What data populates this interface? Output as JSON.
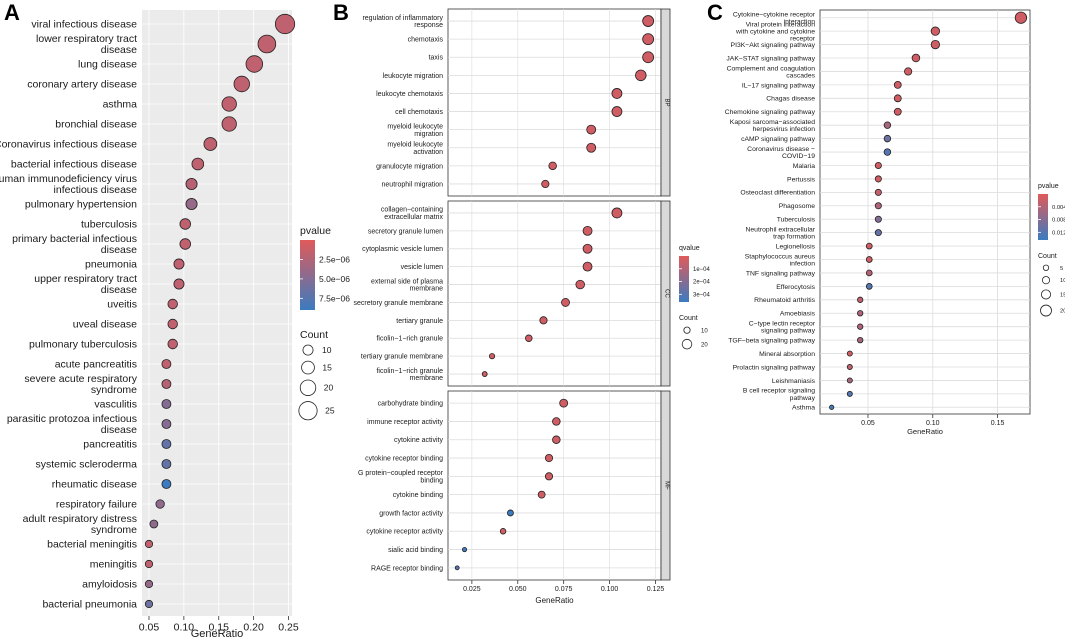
{
  "panels": [
    "A",
    "B",
    "C"
  ],
  "chart_data": [
    {
      "id": "A",
      "type": "scatter",
      "xlabel": "GeneRatio",
      "ylabel": "",
      "xlim": [
        0.04,
        0.255
      ],
      "xticks": [
        "0.05",
        "0.10",
        "0.15",
        "0.20",
        "0.25"
      ],
      "xtick_values": [
        0.05,
        0.1,
        0.15,
        0.2,
        0.25
      ],
      "color_legend": {
        "title": "pvalue",
        "labels": [
          "2.5e−06",
          "5.0e−06",
          "7.5e−06"
        ],
        "high": "#e05a5a",
        "low": "#3b7bc0"
      },
      "size_legend": {
        "title": "Count",
        "labels": [
          "10",
          "15",
          "20",
          "25"
        ],
        "values": [
          10,
          15,
          20,
          25
        ]
      },
      "terms": [
        {
          "label": "viral infectious disease",
          "x": 0.245,
          "count": 27,
          "pvalue": 0.2
        },
        {
          "label": "lower respiratory tract disease",
          "x": 0.219,
          "count": 24,
          "pvalue": 0.2
        },
        {
          "label": "lung disease",
          "x": 0.201,
          "count": 22,
          "pvalue": 0.2
        },
        {
          "label": "coronary artery disease",
          "x": 0.183,
          "count": 20,
          "pvalue": 0.2
        },
        {
          "label": "asthma",
          "x": 0.165,
          "count": 18,
          "pvalue": 0.2
        },
        {
          "label": "bronchial disease",
          "x": 0.165,
          "count": 18,
          "pvalue": 0.2
        },
        {
          "label": "Coronavirus infectious disease",
          "x": 0.138,
          "count": 15,
          "pvalue": 0.2
        },
        {
          "label": "bacterial infectious disease",
          "x": 0.12,
          "count": 13,
          "pvalue": 0.2
        },
        {
          "label": "human immunodeficiency virus infectious disease",
          "x": 0.111,
          "count": 12,
          "pvalue": 0.25
        },
        {
          "label": "pulmonary hypertension",
          "x": 0.111,
          "count": 12,
          "pvalue": 0.45
        },
        {
          "label": "tuberculosis",
          "x": 0.102,
          "count": 11,
          "pvalue": 0.2
        },
        {
          "label": "primary bacterial infectious disease",
          "x": 0.102,
          "count": 11,
          "pvalue": 0.2
        },
        {
          "label": "pneumonia",
          "x": 0.093,
          "count": 10,
          "pvalue": 0.2
        },
        {
          "label": "upper respiratory tract disease",
          "x": 0.093,
          "count": 10,
          "pvalue": 0.2
        },
        {
          "label": "uveitis",
          "x": 0.084,
          "count": 9,
          "pvalue": 0.2
        },
        {
          "label": "uveal disease",
          "x": 0.084,
          "count": 9,
          "pvalue": 0.2
        },
        {
          "label": "pulmonary tuberculosis",
          "x": 0.084,
          "count": 9,
          "pvalue": 0.2
        },
        {
          "label": "acute pancreatitis",
          "x": 0.075,
          "count": 8,
          "pvalue": 0.2
        },
        {
          "label": "severe acute respiratory syndrome",
          "x": 0.075,
          "count": 8,
          "pvalue": 0.25
        },
        {
          "label": "vasculitis",
          "x": 0.075,
          "count": 8,
          "pvalue": 0.55
        },
        {
          "label": "parasitic protozoa infectious disease",
          "x": 0.075,
          "count": 8,
          "pvalue": 0.55
        },
        {
          "label": "pancreatitis",
          "x": 0.075,
          "count": 8,
          "pvalue": 0.75
        },
        {
          "label": "systemic scleroderma",
          "x": 0.075,
          "count": 8,
          "pvalue": 0.75
        },
        {
          "label": "rheumatic disease",
          "x": 0.075,
          "count": 8,
          "pvalue": 1.0
        },
        {
          "label": "respiratory failure",
          "x": 0.066,
          "count": 7,
          "pvalue": 0.5
        },
        {
          "label": "adult respiratory distress syndrome",
          "x": 0.057,
          "count": 6,
          "pvalue": 0.5
        },
        {
          "label": "bacterial meningitis",
          "x": 0.05,
          "count": 5,
          "pvalue": 0.2
        },
        {
          "label": "meningitis",
          "x": 0.05,
          "count": 5,
          "pvalue": 0.2
        },
        {
          "label": "amyloidosis",
          "x": 0.05,
          "count": 5,
          "pvalue": 0.45
        },
        {
          "label": "bacterial pneumonia",
          "x": 0.05,
          "count": 5,
          "pvalue": 0.7
        }
      ]
    },
    {
      "id": "B",
      "type": "scatter",
      "xlabel": "GeneRatio",
      "ylabel": "",
      "xlim": [
        0.012,
        0.128
      ],
      "xticks": [
        "0.025",
        "0.050",
        "0.075",
        "0.100",
        "0.125"
      ],
      "xtick_values": [
        0.025,
        0.05,
        0.075,
        0.1,
        0.125
      ],
      "color_legend": {
        "title": "qvalue",
        "labels": [
          "1e−04",
          "2e−04",
          "3e−04"
        ],
        "high": "#e05a5a",
        "low": "#3b7bc0"
      },
      "size_legend": {
        "title": "Count",
        "labels": [
          "10",
          "20"
        ],
        "values": [
          10,
          20
        ]
      },
      "facets": [
        {
          "strip": "BP",
          "terms": [
            {
              "label": "regulation of inflammatory response",
              "x": 0.121,
              "count": 24,
              "q": 0.1
            },
            {
              "label": "chemotaxis",
              "x": 0.121,
              "count": 24,
              "q": 0.1
            },
            {
              "label": "taxis",
              "x": 0.121,
              "count": 24,
              "q": 0.1
            },
            {
              "label": "leukocyte migration",
              "x": 0.117,
              "count": 23,
              "q": 0.1
            },
            {
              "label": "leukocyte chemotaxis",
              "x": 0.104,
              "count": 21,
              "q": 0.1
            },
            {
              "label": "cell chemotaxis",
              "x": 0.104,
              "count": 21,
              "q": 0.1
            },
            {
              "label": "myeloid leukocyte migration",
              "x": 0.09,
              "count": 18,
              "q": 0.1
            },
            {
              "label": "myeloid leukocyte activation",
              "x": 0.09,
              "count": 18,
              "q": 0.1
            },
            {
              "label": "granulocyte migration",
              "x": 0.069,
              "count": 14,
              "q": 0.1
            },
            {
              "label": "neutrophil migration",
              "x": 0.065,
              "count": 13,
              "q": 0.1
            }
          ]
        },
        {
          "strip": "CC",
          "terms": [
            {
              "label": "collagen−containing extracellular matrix",
              "x": 0.104,
              "count": 21,
              "q": 0.1
            },
            {
              "label": "secretory granule lumen",
              "x": 0.088,
              "count": 18,
              "q": 0.1
            },
            {
              "label": "cytoplasmic vesicle lumen",
              "x": 0.088,
              "count": 18,
              "q": 0.1
            },
            {
              "label": "vesicle lumen",
              "x": 0.088,
              "count": 18,
              "q": 0.1
            },
            {
              "label": "external side of plasma membrane",
              "x": 0.084,
              "count": 17,
              "q": 0.1
            },
            {
              "label": "secretory granule membrane",
              "x": 0.076,
              "count": 15,
              "q": 0.1
            },
            {
              "label": "tertiary granule",
              "x": 0.064,
              "count": 13,
              "q": 0.1
            },
            {
              "label": "ficolin−1−rich granule",
              "x": 0.056,
              "count": 11,
              "q": 0.1
            },
            {
              "label": "tertiary granule membrane",
              "x": 0.036,
              "count": 7,
              "q": 0.1
            },
            {
              "label": "ficolin−1−rich granule membrane",
              "x": 0.032,
              "count": 6,
              "q": 0.1
            }
          ]
        },
        {
          "strip": "MF",
          "terms": [
            {
              "label": "carbohydrate binding",
              "x": 0.075,
              "count": 15,
              "q": 0.1
            },
            {
              "label": "immune receptor activity",
              "x": 0.071,
              "count": 14,
              "q": 0.1
            },
            {
              "label": "cytokine activity",
              "x": 0.071,
              "count": 14,
              "q": 0.1
            },
            {
              "label": "cytokine receptor binding",
              "x": 0.067,
              "count": 13,
              "q": 0.1
            },
            {
              "label": "G protein−coupled receptor binding",
              "x": 0.067,
              "count": 13,
              "q": 0.1
            },
            {
              "label": "cytokine binding",
              "x": 0.063,
              "count": 12,
              "q": 0.1
            },
            {
              "label": "growth factor activity",
              "x": 0.046,
              "count": 9,
              "q": 1.0
            },
            {
              "label": "cytokine receptor activity",
              "x": 0.042,
              "count": 8,
              "q": 0.1
            },
            {
              "label": "sialic acid binding",
              "x": 0.021,
              "count": 4,
              "q": 1.0
            },
            {
              "label": "RAGE receptor binding",
              "x": 0.017,
              "count": 3,
              "q": 0.85
            }
          ]
        }
      ]
    },
    {
      "id": "C",
      "type": "scatter",
      "xlabel": "GeneRatio",
      "ylabel": "",
      "xlim": [
        0.013,
        0.175
      ],
      "xticks": [
        "0.05",
        "0.10",
        "0.15"
      ],
      "xtick_values": [
        0.05,
        0.1,
        0.15
      ],
      "color_legend": {
        "title": "pvalue",
        "labels": [
          "0.004",
          "0.008",
          "0.012"
        ],
        "high": "#e05a5a",
        "low": "#3b7bc0"
      },
      "size_legend": {
        "title": "Count",
        "labels": [
          "5",
          "10",
          "15",
          "20"
        ],
        "values": [
          5,
          10,
          15,
          20
        ]
      },
      "terms": [
        {
          "label": "Cytokine−cytokine receptor interaction",
          "x": 0.168,
          "count": 21,
          "pvalue": 0.1
        },
        {
          "label": "Viral protein interaction with cytokine and cytokine receptor",
          "x": 0.102,
          "count": 13,
          "pvalue": 0.1
        },
        {
          "label": "PI3K−Akt signaling pathway",
          "x": 0.102,
          "count": 13,
          "pvalue": 0.1
        },
        {
          "label": "JAK−STAT signaling pathway",
          "x": 0.087,
          "count": 11,
          "pvalue": 0.1
        },
        {
          "label": "Complement and coagulation cascades",
          "x": 0.081,
          "count": 10,
          "pvalue": 0.1
        },
        {
          "label": "IL−17 signaling pathway",
          "x": 0.073,
          "count": 9,
          "pvalue": 0.1
        },
        {
          "label": "Chagas disease",
          "x": 0.073,
          "count": 9,
          "pvalue": 0.1
        },
        {
          "label": "Chemokine signaling pathway",
          "x": 0.073,
          "count": 9,
          "pvalue": 0.1
        },
        {
          "label": "Kaposi sarcoma−associated herpesvirus infection",
          "x": 0.065,
          "count": 8,
          "pvalue": 0.35
        },
        {
          "label": "cAMP signaling pathway",
          "x": 0.065,
          "count": 8,
          "pvalue": 0.7
        },
        {
          "label": "Coronavirus disease − COVID−19",
          "x": 0.065,
          "count": 8,
          "pvalue": 0.85
        },
        {
          "label": "Malaria",
          "x": 0.058,
          "count": 7,
          "pvalue": 0.1
        },
        {
          "label": "Pertussis",
          "x": 0.058,
          "count": 7,
          "pvalue": 0.1
        },
        {
          "label": "Osteoclast differentiation",
          "x": 0.058,
          "count": 7,
          "pvalue": 0.15
        },
        {
          "label": "Phagosome",
          "x": 0.058,
          "count": 7,
          "pvalue": 0.3
        },
        {
          "label": "Tuberculosis",
          "x": 0.058,
          "count": 7,
          "pvalue": 0.55
        },
        {
          "label": "Neutrophil extracellular trap formation",
          "x": 0.058,
          "count": 7,
          "pvalue": 0.75
        },
        {
          "label": "Legionellosis",
          "x": 0.051,
          "count": 6,
          "pvalue": 0.1
        },
        {
          "label": "Staphylococcus aureus infection",
          "x": 0.051,
          "count": 6,
          "pvalue": 0.1
        },
        {
          "label": "TNF signaling pathway",
          "x": 0.051,
          "count": 6,
          "pvalue": 0.25
        },
        {
          "label": "Efferocytosis",
          "x": 0.051,
          "count": 6,
          "pvalue": 0.85
        },
        {
          "label": "Rheumatoid arthritis",
          "x": 0.044,
          "count": 5,
          "pvalue": 0.2
        },
        {
          "label": "Amoebiasis",
          "x": 0.044,
          "count": 5,
          "pvalue": 0.3
        },
        {
          "label": "C−type lectin receptor signaling pathway",
          "x": 0.044,
          "count": 5,
          "pvalue": 0.3
        },
        {
          "label": "TGF−beta signaling pathway",
          "x": 0.044,
          "count": 5,
          "pvalue": 0.35
        },
        {
          "label": "Mineral absorption",
          "x": 0.036,
          "count": 4,
          "pvalue": 0.1
        },
        {
          "label": "Prolactin signaling pathway",
          "x": 0.036,
          "count": 4,
          "pvalue": 0.2
        },
        {
          "label": "Leishmaniasis",
          "x": 0.036,
          "count": 4,
          "pvalue": 0.35
        },
        {
          "label": "B cell receptor signaling pathway",
          "x": 0.036,
          "count": 4,
          "pvalue": 0.85
        },
        {
          "label": "Asthma",
          "x": 0.022,
          "count": 2,
          "pvalue": 0.95
        }
      ]
    }
  ]
}
